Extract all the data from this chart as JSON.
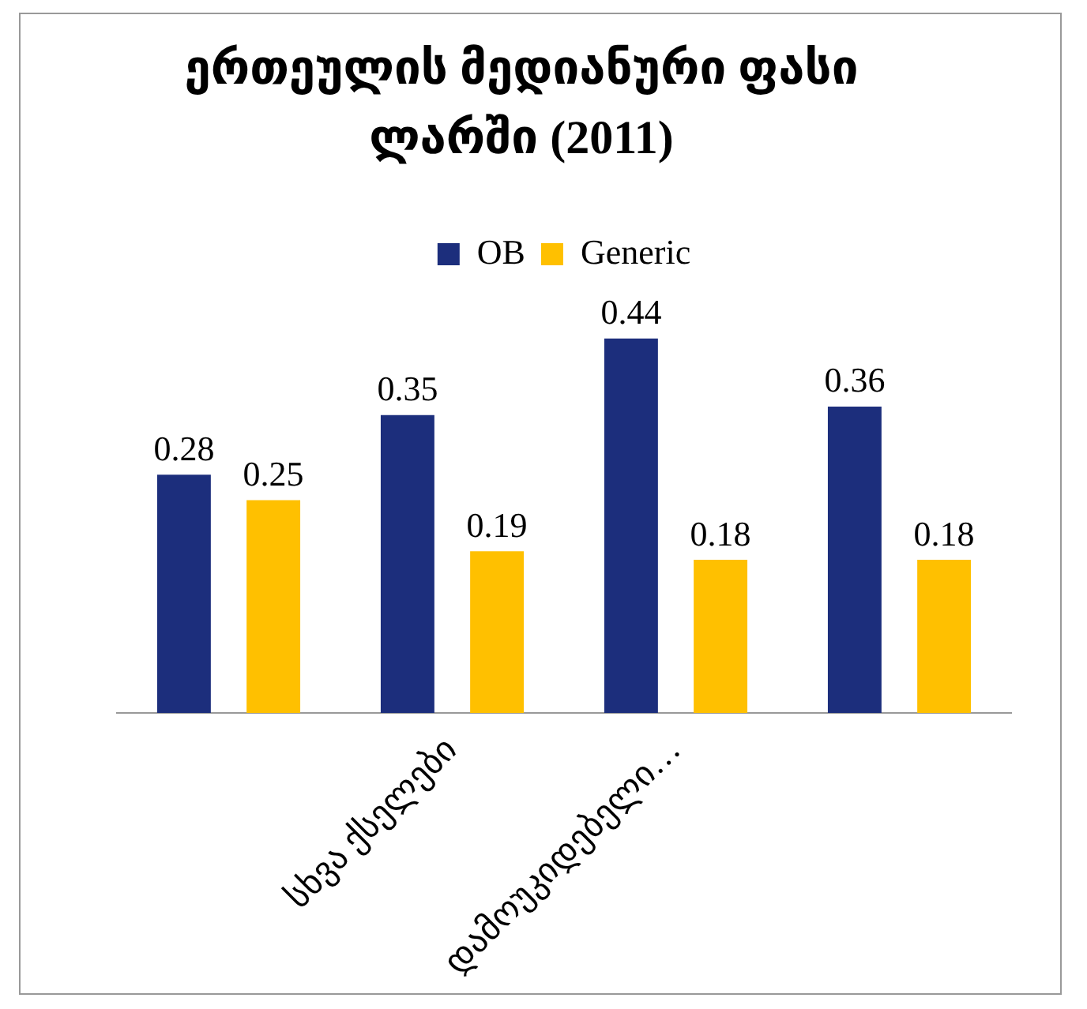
{
  "chart_data": {
    "type": "bar",
    "title": "ერთეულის მედიანური ფასი ლარში  (2011)",
    "categories": [
      null,
      "სხვა ქსელები",
      "დამოუკიდებელი…",
      null
    ],
    "series": [
      {
        "name": "OB",
        "color": "#1c2e7c",
        "values": [
          0.28,
          0.35,
          0.44,
          0.36
        ]
      },
      {
        "name": "Generic",
        "color": "#ffc000",
        "values": [
          0.25,
          0.19,
          0.18,
          0.18
        ]
      }
    ],
    "data_labels": true,
    "legend": "top",
    "grid": false
  }
}
